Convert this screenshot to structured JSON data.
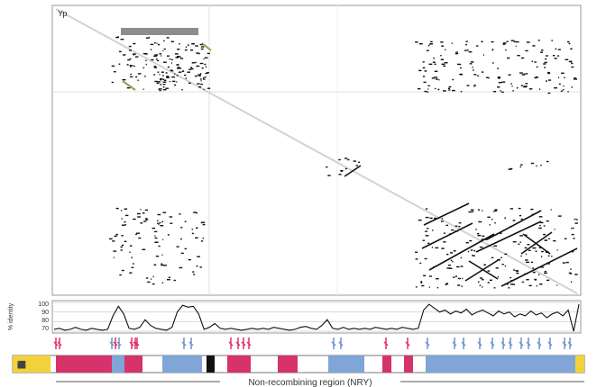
{
  "figure": {
    "corner_label": "Yp",
    "highlight_box_label": "",
    "track_axis_label": "% identity",
    "track_ticks": [
      "100",
      "90",
      "80",
      "70"
    ],
    "region_label": "Non-recombining region (NRY)",
    "colors": {
      "dot": "#111111",
      "diagonal": "#cfd6c8",
      "grid": "#e0e0e0",
      "box_gray": "#8d8d8d",
      "pink": "#d6336c",
      "blue": "#7fa6d6",
      "yellow": "#f2d13a",
      "black": "#111111",
      "label_pink": "#e0306a",
      "label_blue": "#6d93c9"
    }
  },
  "chart_data": {
    "type": "line",
    "title": "",
    "ylabel": "% identity",
    "ylim": [
      70,
      100
    ],
    "y": [
      72,
      73,
      71,
      72,
      74,
      72,
      71,
      73,
      72,
      71,
      72,
      86,
      96,
      88,
      73,
      72,
      74,
      82,
      76,
      73,
      72,
      71,
      74,
      90,
      97,
      95,
      96,
      88,
      72,
      74,
      78,
      73,
      72,
      73,
      72,
      71,
      72,
      73,
      72,
      73,
      72,
      74,
      73,
      72,
      71,
      72,
      74,
      75,
      73,
      72,
      76,
      82,
      73,
      72,
      74,
      72,
      73,
      72,
      73,
      72,
      74,
      73,
      72,
      73,
      72,
      74,
      73,
      72,
      73,
      92,
      98,
      94,
      90,
      92,
      88,
      91,
      89,
      93,
      87,
      90,
      92,
      89,
      86,
      91,
      88,
      90,
      85,
      88,
      86,
      91,
      87,
      89,
      84,
      88,
      90,
      86,
      92,
      70,
      98
    ]
  }
}
